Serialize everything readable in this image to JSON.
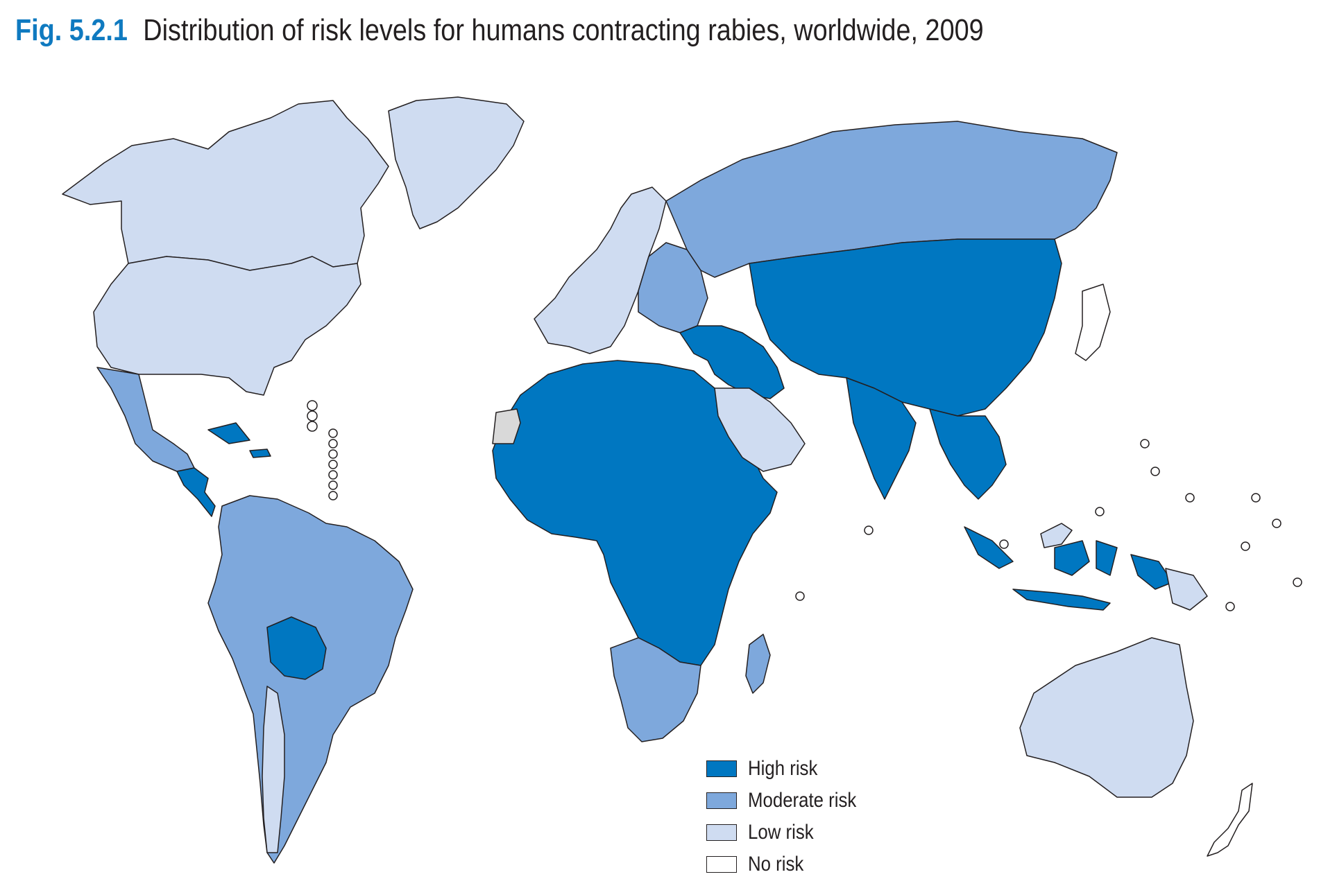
{
  "figure": {
    "number": "Fig. 5.2.1",
    "title": "Distribution of risk levels for humans contracting rabies, worldwide, 2009"
  },
  "legend": {
    "items": [
      {
        "key": "high",
        "label": "High risk",
        "color": "#0077c1"
      },
      {
        "key": "moderate",
        "label": "Moderate risk",
        "color": "#7ea8dc"
      },
      {
        "key": "low",
        "label": "Low risk",
        "color": "#cfdcf1"
      },
      {
        "key": "none",
        "label": "No risk",
        "color": "#ffffff"
      }
    ]
  },
  "colors": {
    "border": "#231f20",
    "title_accent": "#0f7ac0",
    "no_data": "#d9d9d9"
  },
  "regions": [
    {
      "name": "canada-alaska-greenland",
      "risk": "low"
    },
    {
      "name": "united-states",
      "risk": "low"
    },
    {
      "name": "mexico",
      "risk": "moderate"
    },
    {
      "name": "central-america",
      "risk": "high"
    },
    {
      "name": "caribbean",
      "risk": "high"
    },
    {
      "name": "south-america",
      "risk": "moderate"
    },
    {
      "name": "bolivia",
      "risk": "high"
    },
    {
      "name": "chile-argentina-south",
      "risk": "low"
    },
    {
      "name": "western-europe",
      "risk": "low"
    },
    {
      "name": "eastern-europe",
      "risk": "moderate"
    },
    {
      "name": "russia",
      "risk": "moderate"
    },
    {
      "name": "japan",
      "risk": "none"
    },
    {
      "name": "africa",
      "risk": "high"
    },
    {
      "name": "southern-africa",
      "risk": "moderate"
    },
    {
      "name": "madagascar",
      "risk": "moderate"
    },
    {
      "name": "western-sahara",
      "risk": "no-data"
    },
    {
      "name": "middle-east",
      "risk": "high"
    },
    {
      "name": "arabian-peninsula",
      "risk": "low"
    },
    {
      "name": "central-asia-china",
      "risk": "high"
    },
    {
      "name": "india",
      "risk": "high"
    },
    {
      "name": "southeast-asia",
      "risk": "high"
    },
    {
      "name": "indonesia",
      "risk": "high"
    },
    {
      "name": "borneo-north",
      "risk": "low"
    },
    {
      "name": "papua-new-guinea",
      "risk": "low"
    },
    {
      "name": "australia",
      "risk": "low"
    },
    {
      "name": "new-zealand",
      "risk": "none"
    }
  ]
}
